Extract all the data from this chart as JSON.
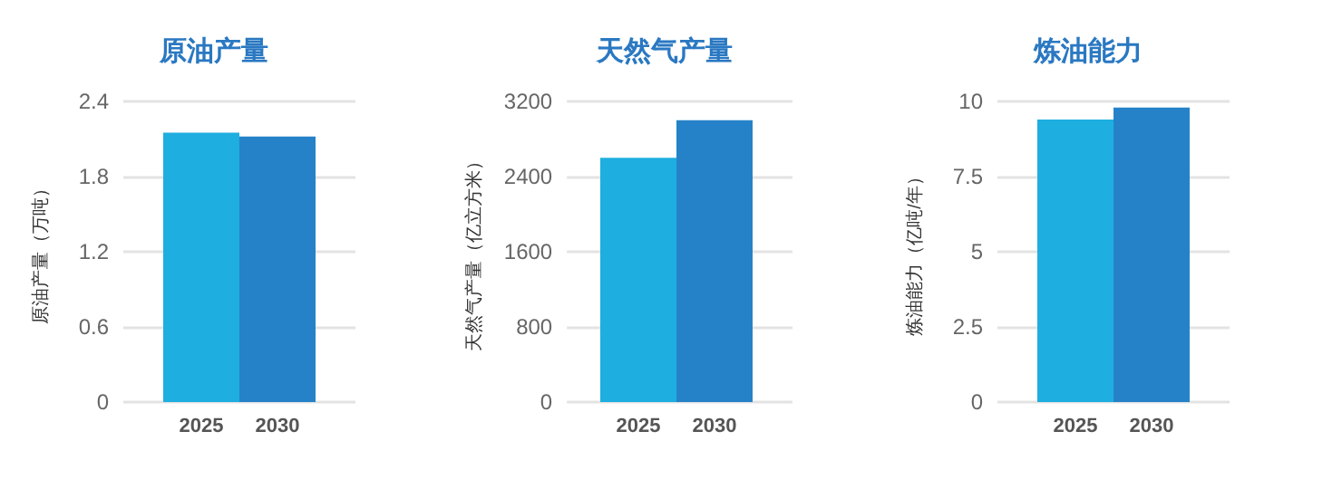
{
  "chart_data": [
    {
      "type": "bar",
      "title": "原油产量",
      "ylabel": "原油产量（万吨）",
      "categories": [
        "2025",
        "2030"
      ],
      "values": [
        2.15,
        2.12
      ],
      "colors": [
        "#1eaee0",
        "#2682c8"
      ],
      "ylim": [
        0,
        2.4
      ],
      "yticks": [
        0,
        0.6,
        1.2,
        1.8,
        2.4
      ],
      "grid": "y"
    },
    {
      "type": "bar",
      "title": "天然气产量",
      "ylabel": "天然气产量（亿立方米）",
      "categories": [
        "2025",
        "2030"
      ],
      "values": [
        2600,
        3000
      ],
      "colors": [
        "#1eaee0",
        "#2682c8"
      ],
      "ylim": [
        0,
        3200
      ],
      "yticks": [
        0,
        800,
        1600,
        2400,
        3200
      ],
      "grid": "y"
    },
    {
      "type": "bar",
      "title": "炼油能力",
      "ylabel": "炼油能力（亿吨/年）",
      "categories": [
        "2025",
        "2030"
      ],
      "values": [
        9.4,
        9.8
      ],
      "colors": [
        "#1eaee0",
        "#2682c8"
      ],
      "ylim": [
        0,
        10
      ],
      "yticks": [
        0,
        2.5,
        5,
        7.5,
        10
      ],
      "grid": "y"
    }
  ]
}
